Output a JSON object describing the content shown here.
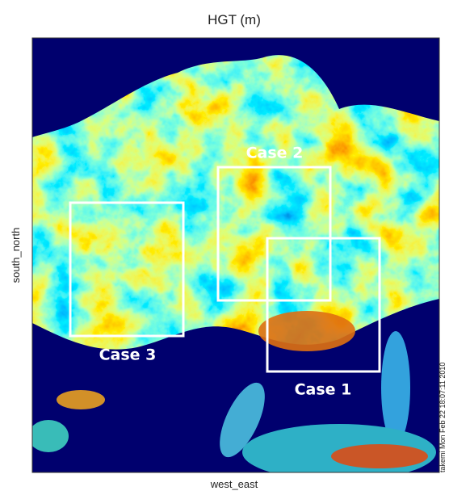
{
  "title": "HGT (m)",
  "y_axis_label": "south_north",
  "x_axis_label": "west_east",
  "footer": "takemi Mon Feb 22 18:07:11 2010",
  "boxes": [
    {
      "label": "Case 1"
    },
    {
      "label": "Case 2"
    },
    {
      "label": "Case 3"
    }
  ]
}
